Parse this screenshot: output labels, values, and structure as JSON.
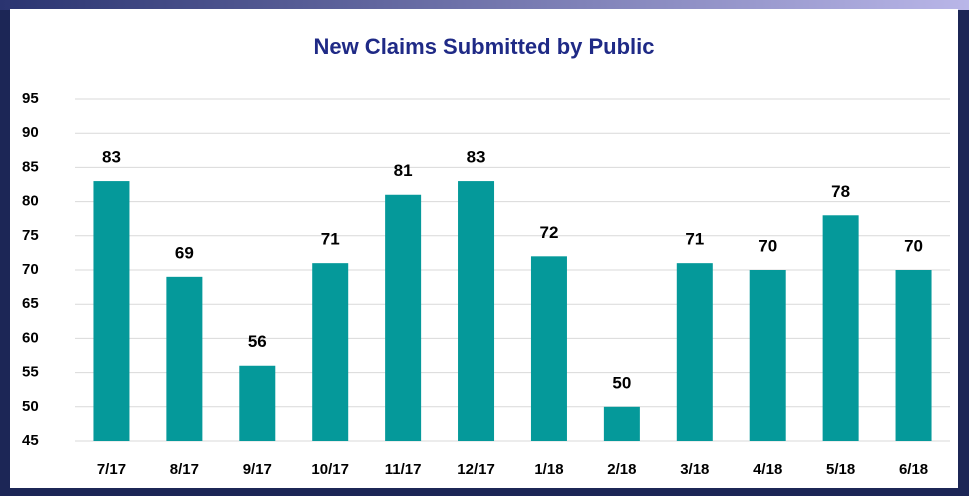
{
  "chart_data": {
    "type": "bar",
    "title": "New Claims Submitted by Public",
    "categories": [
      "7/17",
      "8/17",
      "9/17",
      "10/17",
      "11/17",
      "12/17",
      "1/18",
      "2/18",
      "3/18",
      "4/18",
      "5/18",
      "6/18"
    ],
    "values": [
      83,
      69,
      56,
      71,
      81,
      83,
      72,
      50,
      71,
      70,
      78,
      70
    ],
    "color": "#05999a",
    "ylim": [
      45,
      95
    ],
    "yticks": [
      45,
      50,
      55,
      60,
      65,
      70,
      75,
      80,
      85,
      90,
      95
    ],
    "grid": true
  }
}
